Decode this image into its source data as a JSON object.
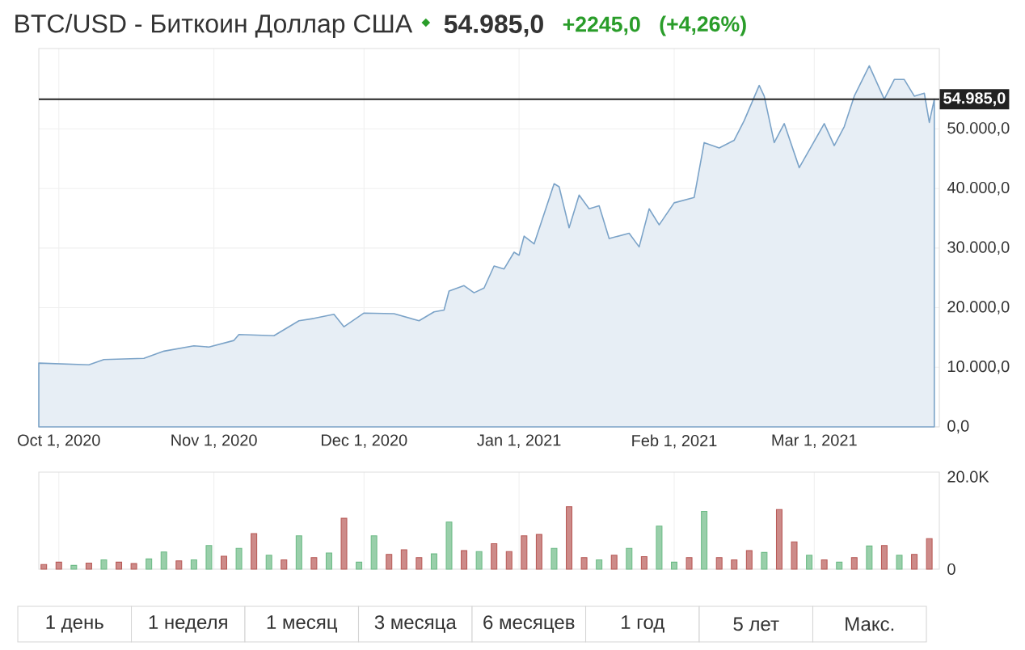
{
  "chart_data": [
    {
      "type": "area",
      "title": "BTC/USD - Биткоин Доллар США",
      "subtitle": "54.985,0",
      "annotations": [
        "+2245,0",
        "(+4,26%)",
        "1 день",
        "1 неделя",
        "1 месяц",
        "3 месяца",
        "6 месяцев",
        "1 год",
        "5 лет",
        "Макс."
      ],
      "x": [
        "2020-09-27",
        "2020-10-07",
        "2020-10-10",
        "2020-10-18",
        "2020-10-22",
        "2020-10-28",
        "2020-10-31",
        "2020-11-05",
        "2020-11-06",
        "2020-11-13",
        "2020-11-18",
        "2020-11-21",
        "2020-11-25",
        "2020-11-27",
        "2020-12-01",
        "2020-12-07",
        "2020-12-12",
        "2020-12-15",
        "2020-12-17",
        "2020-12-18",
        "2020-12-21",
        "2020-12-23",
        "2020-12-25",
        "2020-12-27",
        "2020-12-29",
        "2020-12-31",
        "2021-01-01",
        "2021-01-02",
        "2021-01-04",
        "2021-01-08",
        "2021-01-09",
        "2021-01-11",
        "2021-01-13",
        "2021-01-15",
        "2021-01-17",
        "2021-01-19",
        "2021-01-23",
        "2021-01-25",
        "2021-01-27",
        "2021-01-29",
        "2021-02-01",
        "2021-02-05",
        "2021-02-07",
        "2021-02-10",
        "2021-02-13",
        "2021-02-15",
        "2021-02-18",
        "2021-02-19",
        "2021-02-21",
        "2021-02-23",
        "2021-02-26",
        "2021-03-03",
        "2021-03-05",
        "2021-03-07",
        "2021-03-09",
        "2021-03-12",
        "2021-03-15",
        "2021-03-17",
        "2021-03-19",
        "2021-03-21",
        "2021-03-23",
        "2021-03-24",
        "2021-03-25"
      ],
      "series": [
        {
          "color": "#7ba3c8",
          "values": [
            10700,
            10400,
            11300,
            11500,
            12700,
            13600,
            13400,
            14500,
            15500,
            15300,
            17800,
            18200,
            18900,
            16800,
            19100,
            19000,
            17800,
            19300,
            19600,
            22800,
            23700,
            22500,
            23300,
            27000,
            26500,
            29300,
            28800,
            32000,
            30700,
            40800,
            40300,
            33400,
            38900,
            36600,
            37100,
            31600,
            32500,
            30200,
            36600,
            33900,
            37600,
            38500,
            47700,
            46800,
            48100,
            51400,
            57300,
            55500,
            47700,
            50900,
            43500,
            50900,
            47200,
            50400,
            55500,
            60600,
            55000,
            58300,
            58300,
            55500,
            56000,
            51100,
            55000
          ]
        }
      ],
      "xlim": [
        "2020-09-27",
        "2021-03-26"
      ],
      "xticks": [
        {
          "value": "2020-10-01",
          "label": "Oct 1, 2020"
        },
        {
          "value": "2020-11-01",
          "label": "Nov 1, 2020"
        },
        {
          "value": "2020-12-01",
          "label": "Dec 1, 2020"
        },
        {
          "value": "2021-01-01",
          "label": "Jan 1, 2021"
        },
        {
          "value": "2021-02-01",
          "label": "Feb 1, 2021"
        },
        {
          "value": "2021-03-01",
          "label": "Mar 1, 2021"
        }
      ],
      "ylim": [
        0,
        63500
      ],
      "yticks": [
        {
          "value": 0,
          "label": "0,0"
        },
        {
          "value": 10000,
          "label": "10.000,0"
        },
        {
          "value": 20000,
          "label": "20.000,0"
        },
        {
          "value": 30000,
          "label": "30.000,0"
        },
        {
          "value": 40000,
          "label": "40.000,0"
        },
        {
          "value": 50000,
          "label": "50.000,0"
        }
      ],
      "ref_lines": [
        {
          "axis": "y",
          "value": 54985,
          "label": "54.985,0",
          "color": "#222222"
        }
      ],
      "grid": true
    },
    {
      "type": "bar",
      "x": [
        "2020-09-28",
        "2020-10-01",
        "2020-10-04",
        "2020-10-07",
        "2020-10-10",
        "2020-10-13",
        "2020-10-16",
        "2020-10-19",
        "2020-10-22",
        "2020-10-25",
        "2020-10-28",
        "2020-10-31",
        "2020-11-03",
        "2020-11-06",
        "2020-11-09",
        "2020-11-12",
        "2020-11-15",
        "2020-11-18",
        "2020-11-21",
        "2020-11-24",
        "2020-11-27",
        "2020-11-30",
        "2020-12-03",
        "2020-12-06",
        "2020-12-09",
        "2020-12-12",
        "2020-12-15",
        "2020-12-18",
        "2020-12-21",
        "2020-12-24",
        "2020-12-27",
        "2020-12-30",
        "2021-01-02",
        "2021-01-05",
        "2021-01-08",
        "2021-01-11",
        "2021-01-14",
        "2021-01-17",
        "2021-01-20",
        "2021-01-23",
        "2021-01-26",
        "2021-01-29",
        "2021-02-01",
        "2021-02-04",
        "2021-02-07",
        "2021-02-10",
        "2021-02-13",
        "2021-02-16",
        "2021-02-19",
        "2021-02-22",
        "2021-02-25",
        "2021-02-28",
        "2021-03-03",
        "2021-03-06",
        "2021-03-09",
        "2021-03-12",
        "2021-03-15",
        "2021-03-18",
        "2021-03-21",
        "2021-03-24"
      ],
      "values": [
        1000,
        1500,
        800,
        1300,
        2000,
        1500,
        1200,
        2200,
        3700,
        1800,
        2000,
        5100,
        2800,
        4500,
        7700,
        3000,
        2000,
        7200,
        2500,
        3500,
        11000,
        1500,
        7200,
        3200,
        4200,
        2500,
        3300,
        10200,
        4000,
        3800,
        5500,
        3800,
        7200,
        7500,
        4500,
        13500,
        2500,
        2000,
        3000,
        4500,
        2700,
        9300,
        1500,
        2500,
        12500,
        2500,
        2000,
        4000,
        3600,
        12900,
        5900,
        3000,
        2000,
        1500,
        2500,
        5000,
        5100,
        3000,
        3200,
        6600
      ],
      "colors": [
        "#b85a57",
        "#b85a57",
        "#6dbb86",
        "#b85a57",
        "#6dbb86",
        "#b85a57",
        "#b85a57",
        "#6dbb86",
        "#6dbb86",
        "#b85a57",
        "#6dbb86",
        "#6dbb86",
        "#b85a57",
        "#6dbb86",
        "#b85a57",
        "#6dbb86",
        "#b85a57",
        "#6dbb86",
        "#b85a57",
        "#6dbb86",
        "#b85a57",
        "#6dbb86",
        "#6dbb86",
        "#b85a57",
        "#b85a57",
        "#b85a57",
        "#6dbb86",
        "#6dbb86",
        "#b85a57",
        "#6dbb86",
        "#b85a57",
        "#b85a57",
        "#b85a57",
        "#b85a57",
        "#6dbb86",
        "#b85a57",
        "#b85a57",
        "#6dbb86",
        "#b85a57",
        "#6dbb86",
        "#b85a57",
        "#6dbb86",
        "#6dbb86",
        "#b85a57",
        "#6dbb86",
        "#b85a57",
        "#b85a57",
        "#b85a57",
        "#6dbb86",
        "#b85a57",
        "#b85a57",
        "#6dbb86",
        "#b85a57",
        "#6dbb86",
        "#b85a57",
        "#6dbb86",
        "#b85a57",
        "#6dbb86",
        "#b85a57",
        "#b85a57"
      ],
      "xlim": [
        "2020-09-27",
        "2021-03-26"
      ],
      "xticks": [
        {
          "value": "2020-10-01",
          "label": null
        },
        {
          "value": "2020-11-01",
          "label": null
        },
        {
          "value": "2020-12-01",
          "label": null
        },
        {
          "value": "2021-01-01",
          "label": null
        },
        {
          "value": "2021-02-01",
          "label": null
        },
        {
          "value": "2021-03-01",
          "label": null
        }
      ],
      "ylim": [
        0,
        21000
      ],
      "yticks": [
        0,
        {
          "value": 20000,
          "label": "20.0K"
        }
      ],
      "tick_labels": "y",
      "grid": "x"
    }
  ]
}
